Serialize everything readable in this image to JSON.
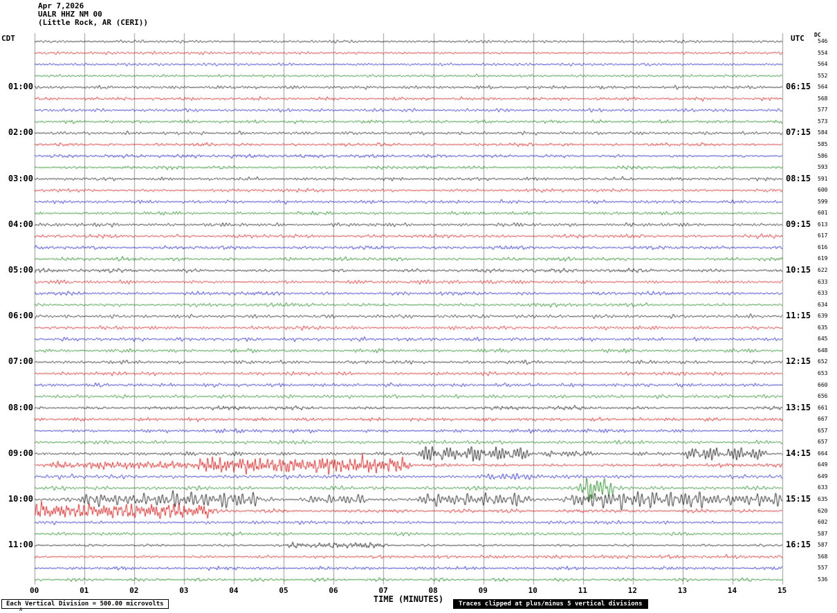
{
  "header": {
    "date": "Apr 7,2026",
    "station": "UALR HHZ NM 00",
    "location": "(Little Rock, AR (CERI))"
  },
  "axes": {
    "left_tz": "CDT",
    "right_tz": "UTC",
    "dc_label": "DC",
    "x_title": "TIME (MINUTES)",
    "x_ticks": [
      "00",
      "01",
      "02",
      "03",
      "04",
      "05",
      "06",
      "07",
      "08",
      "09",
      "10",
      "11",
      "12",
      "13",
      "14",
      "15"
    ]
  },
  "footer": {
    "scale_note": "Each Vertical Division =  500.00 microvolts",
    "clip_note": "Traces clipped at plus/minus 5 vertical divisions",
    "corner_mark": "A"
  },
  "chart_data": {
    "type": "line",
    "subtype": "seismogram-helicorder",
    "title": "UALR HHZ NM 00 (Little Rock, AR (CERI)) Apr 7,2026",
    "xlabel": "TIME (MINUTES)",
    "x_range_minutes": [
      0,
      15
    ],
    "minutes_per_row": 15,
    "rows_count": 48,
    "grid": true,
    "grid_color": "#999999",
    "trace_colors": [
      "#000000",
      "#cc0000",
      "#0000bb",
      "#007700"
    ],
    "default_amp": 2.6,
    "rows": [
      {
        "dc": "546",
        "amp": 2.2
      },
      {
        "dc": "554",
        "amp": 2.2
      },
      {
        "dc": "564",
        "amp": 2.2
      },
      {
        "dc": "552",
        "amp": 2.2
      },
      {
        "left": "01:00",
        "right": "06:15",
        "dc": "564"
      },
      {
        "dc": "568"
      },
      {
        "dc": "577"
      },
      {
        "dc": "573"
      },
      {
        "left": "02:00",
        "right": "07:15",
        "dc": "584"
      },
      {
        "dc": "585"
      },
      {
        "dc": "586"
      },
      {
        "dc": "593"
      },
      {
        "left": "03:00",
        "right": "08:15",
        "dc": "591"
      },
      {
        "dc": "600"
      },
      {
        "dc": "599"
      },
      {
        "dc": "601"
      },
      {
        "left": "04:00",
        "right": "09:15",
        "dc": "613",
        "amp": 2.9
      },
      {
        "dc": "617",
        "amp": 2.9
      },
      {
        "dc": "616",
        "amp": 2.9
      },
      {
        "dc": "619",
        "amp": 2.9
      },
      {
        "left": "05:00",
        "right": "10:15",
        "dc": "622",
        "amp": 2.9
      },
      {
        "dc": "633",
        "amp": 2.9
      },
      {
        "dc": "633",
        "amp": 2.9
      },
      {
        "dc": "634",
        "amp": 2.9
      },
      {
        "left": "06:00",
        "right": "11:15",
        "dc": "639",
        "amp": 2.9
      },
      {
        "dc": "635",
        "amp": 2.9
      },
      {
        "dc": "645",
        "amp": 2.9
      },
      {
        "dc": "648",
        "amp": 2.9
      },
      {
        "left": "07:00",
        "right": "12:15",
        "dc": "652",
        "amp": 2.9
      },
      {
        "dc": "653",
        "amp": 2.9
      },
      {
        "dc": "660",
        "amp": 2.9
      },
      {
        "dc": "656",
        "amp": 2.9
      },
      {
        "left": "08:00",
        "right": "13:15",
        "dc": "661",
        "amp": 2.9
      },
      {
        "dc": "667",
        "amp": 2.9
      },
      {
        "dc": "657",
        "amp": 2.9
      },
      {
        "dc": "657",
        "amp": 2.9
      },
      {
        "left": "09:00",
        "right": "14:15",
        "dc": "664",
        "amp": 3.0,
        "events": [
          {
            "s": 7.8,
            "e": 9.9,
            "a": 8
          },
          {
            "s": 10.4,
            "e": 11.0,
            "a": 4
          },
          {
            "s": 13.2,
            "e": 14.6,
            "a": 7
          }
        ]
      },
      {
        "dc": "649",
        "amp": 3.0,
        "events": [
          {
            "s": 0.4,
            "e": 3.3,
            "a": 4
          },
          {
            "s": 3.3,
            "e": 7.4,
            "a": 9
          }
        ]
      },
      {
        "dc": "649",
        "amp": 3.0,
        "events": [
          {
            "s": 9.0,
            "e": 10.0,
            "a": 3
          }
        ]
      },
      {
        "dc": "633",
        "amp": 3.0,
        "events": [
          {
            "s": 11.05,
            "e": 11.45,
            "a": 18
          }
        ]
      },
      {
        "left": "10:00",
        "right": "15:15",
        "dc": "635",
        "amp": 3.0,
        "events": [
          {
            "s": 1.0,
            "e": 2.2,
            "a": 7
          },
          {
            "s": 2.5,
            "e": 4.4,
            "a": 9
          },
          {
            "s": 5.5,
            "e": 6.6,
            "a": 4
          },
          {
            "s": 7.8,
            "e": 9.8,
            "a": 7
          },
          {
            "s": 10.8,
            "e": 13.6,
            "a": 10
          },
          {
            "s": 14.0,
            "e": 15.0,
            "a": 8
          }
        ]
      },
      {
        "dc": "620",
        "amp": 3.0,
        "events": [
          {
            "s": 0.0,
            "e": 3.5,
            "a": 9
          }
        ]
      },
      {
        "dc": "602"
      },
      {
        "dc": "587"
      },
      {
        "left": "11:00",
        "right": "16:15",
        "dc": "587",
        "events": [
          {
            "s": 5.2,
            "e": 7.0,
            "a": 3
          }
        ]
      },
      {
        "dc": "568"
      },
      {
        "dc": "557"
      },
      {
        "dc": "536"
      }
    ]
  }
}
